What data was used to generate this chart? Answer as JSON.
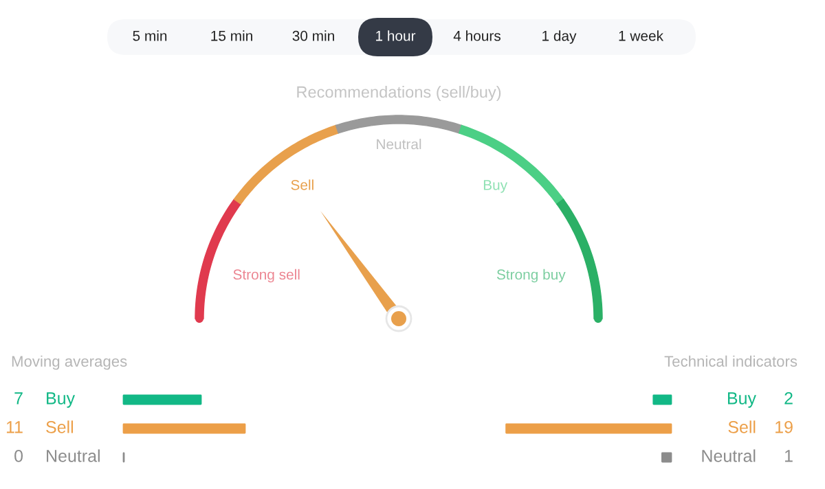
{
  "chart_data": [
    {
      "type": "other",
      "categories": [
        "5 min",
        "15 min",
        "30 min",
        "1 hour",
        "4 hours",
        "1 day",
        "1 week"
      ],
      "colors": [
        null,
        null,
        null,
        "#343a46",
        null,
        null,
        null
      ]
    },
    {
      "type": "donut",
      "title": "Recommendations (sell/buy)",
      "categories": [
        "Strong sell",
        "Sell",
        "Neutral",
        "Buy",
        "Strong buy"
      ],
      "values": [
        20,
        20,
        20,
        20,
        20
      ],
      "colors": [
        "#e03a4e",
        "#e8a04c",
        "#9a9a9a",
        "#4bcf85",
        "#2bb066"
      ],
      "needle": "Sell"
    },
    {
      "type": "bar",
      "orientation": "horizontal",
      "title": "Moving averages",
      "categories": [
        "Buy",
        "Sell",
        "Neutral"
      ],
      "values": [
        7,
        11,
        0
      ],
      "colors": [
        "#12b886",
        "#ec9f48",
        "#8c8c8c"
      ],
      "data_labels": true
    },
    {
      "type": "bar",
      "orientation": "horizontal",
      "title": "Technical indicators",
      "categories": [
        "Buy",
        "Sell",
        "Neutral"
      ],
      "values": [
        2,
        19,
        1
      ],
      "colors": [
        "#12b886",
        "#ec9f48",
        "#8c8c8c"
      ],
      "data_labels": true
    }
  ]
}
